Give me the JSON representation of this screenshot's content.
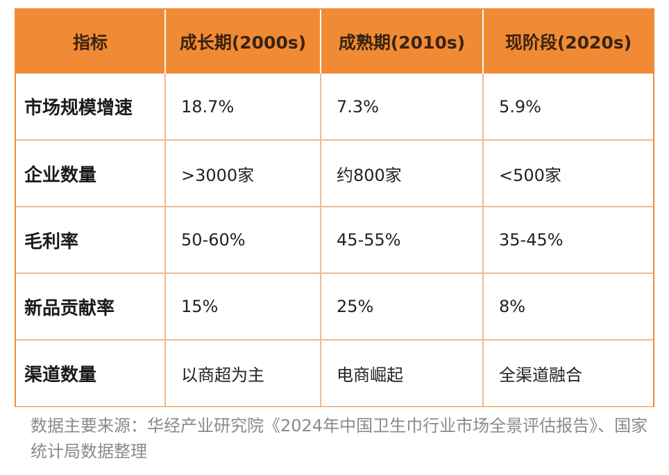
{
  "table": {
    "headers": [
      "指标",
      "成长期(2000s)",
      "成熟期(2010s)",
      "现阶段(2020s)"
    ],
    "rows": [
      [
        "市场规模增速",
        "18.7%",
        "7.3%",
        "5.9%"
      ],
      [
        "企业数量",
        ">3000家",
        "约800家",
        "<500家"
      ],
      [
        "毛利率",
        "50-60%",
        "45-55%",
        "35-45%"
      ],
      [
        "新品贡献率",
        "15%",
        "25%",
        "8%"
      ],
      [
        "渠道数量",
        "以商超为主",
        "电商崛起",
        "全渠道融合"
      ]
    ]
  },
  "footnote": "数据主要来源：华经产业研究院《2024年中国卫生巾行业市场全景评估报告》、国家统计局数据整理",
  "colors": {
    "header_bg": "#f08a35",
    "header_text": "#3a2310",
    "grid_line": "#f3b98a",
    "footnote_text": "#8a8a8a"
  }
}
